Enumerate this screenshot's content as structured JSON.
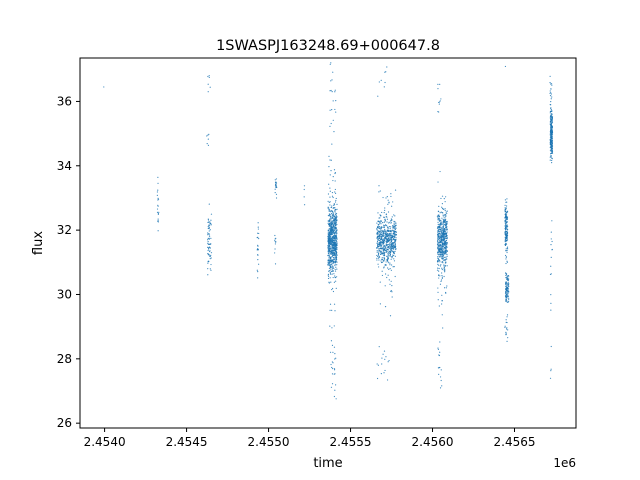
{
  "chart_data": {
    "type": "scatter",
    "title": "1SWASPJ163248.69+000647.8",
    "xlabel": "time",
    "ylabel": "flux",
    "x_offset_label": "1e6",
    "xlim": [
      2453850,
      2456875
    ],
    "ylim": [
      25.85,
      37.35
    ],
    "x_ticks": [
      2454000,
      2454500,
      2455000,
      2455500,
      2456000,
      2456500
    ],
    "x_tick_labels": [
      "2.4540",
      "2.4545",
      "2.4550",
      "2.4555",
      "2.4560",
      "2.4565"
    ],
    "y_ticks": [
      26,
      28,
      30,
      32,
      34,
      36
    ],
    "y_tick_labels": [
      "26",
      "28",
      "30",
      "32",
      "34",
      "36"
    ],
    "grid": false,
    "legend": "none",
    "marker_color": "#1f77b4",
    "clusters": [
      {
        "x": 2453995,
        "x_spread": 0,
        "y": 36.45,
        "y_spread": 0.0,
        "n": 1
      },
      {
        "x": 2454325,
        "x_spread": 6,
        "y": 32.7,
        "y_spread": 0.5,
        "n": 20
      },
      {
        "x": 2454640,
        "x_spread": 12,
        "y": 31.7,
        "y_spread": 0.7,
        "n": 70
      },
      {
        "x": 2454638,
        "x_spread": 8,
        "y": 36.6,
        "y_spread": 0.45,
        "n": 6
      },
      {
        "x": 2454630,
        "x_spread": 8,
        "y": 34.6,
        "y_spread": 0.4,
        "n": 6
      },
      {
        "x": 2454935,
        "x_spread": 5,
        "y": 31.3,
        "y_spread": 0.6,
        "n": 22
      },
      {
        "x": 2455045,
        "x_spread": 5,
        "y": 33.3,
        "y_spread": 0.3,
        "n": 20
      },
      {
        "x": 2455040,
        "x_spread": 4,
        "y": 31.5,
        "y_spread": 0.5,
        "n": 10
      },
      {
        "x": 2455220,
        "x_spread": 4,
        "y": 33.2,
        "y_spread": 0.3,
        "n": 4
      },
      {
        "x": 2455390,
        "x_spread": 28,
        "y": 31.7,
        "y_spread": 0.7,
        "n": 650
      },
      {
        "x": 2455390,
        "x_spread": 24,
        "y": 31.7,
        "y_spread": 2.0,
        "n": 110
      },
      {
        "x": 2455395,
        "x_spread": 18,
        "y": 27.7,
        "y_spread": 0.8,
        "n": 22
      },
      {
        "x": 2455392,
        "x_spread": 18,
        "y": 36.0,
        "y_spread": 0.9,
        "n": 20
      },
      {
        "x": 2455720,
        "x_spread": 60,
        "y": 31.7,
        "y_spread": 0.5,
        "n": 560
      },
      {
        "x": 2455720,
        "x_spread": 55,
        "y": 31.7,
        "y_spread": 1.4,
        "n": 100
      },
      {
        "x": 2455700,
        "x_spread": 40,
        "y": 27.9,
        "y_spread": 0.5,
        "n": 16
      },
      {
        "x": 2455700,
        "x_spread": 35,
        "y": 36.7,
        "y_spread": 0.4,
        "n": 8
      },
      {
        "x": 2456060,
        "x_spread": 30,
        "y": 31.7,
        "y_spread": 0.6,
        "n": 480
      },
      {
        "x": 2456060,
        "x_spread": 28,
        "y": 31.5,
        "y_spread": 1.7,
        "n": 90
      },
      {
        "x": 2456045,
        "x_spread": 12,
        "y": 27.7,
        "y_spread": 0.6,
        "n": 14
      },
      {
        "x": 2456042,
        "x_spread": 10,
        "y": 36.3,
        "y_spread": 0.6,
        "n": 10
      },
      {
        "x": 2456450,
        "x_spread": 8,
        "y": 32.0,
        "y_spread": 0.6,
        "n": 170
      },
      {
        "x": 2456455,
        "x_spread": 10,
        "y": 30.2,
        "y_spread": 0.35,
        "n": 110
      },
      {
        "x": 2456450,
        "x_spread": 10,
        "y": 29.0,
        "y_spread": 0.4,
        "n": 16
      },
      {
        "x": 2456445,
        "x_spread": 3,
        "y": 37.1,
        "y_spread": 0.05,
        "n": 1
      },
      {
        "x": 2456725,
        "x_spread": 7,
        "y": 35.0,
        "y_spread": 0.5,
        "n": 250
      },
      {
        "x": 2456722,
        "x_spread": 6,
        "y": 36.3,
        "y_spread": 0.4,
        "n": 18
      },
      {
        "x": 2456725,
        "x_spread": 6,
        "y": 31.0,
        "y_spread": 1.2,
        "n": 14
      },
      {
        "x": 2456720,
        "x_spread": 4,
        "y": 28.3,
        "y_spread": 0.4,
        "n": 3
      },
      {
        "x": 2456720,
        "x_spread": 2,
        "y": 27.4,
        "y_spread": 0.1,
        "n": 1
      }
    ]
  }
}
